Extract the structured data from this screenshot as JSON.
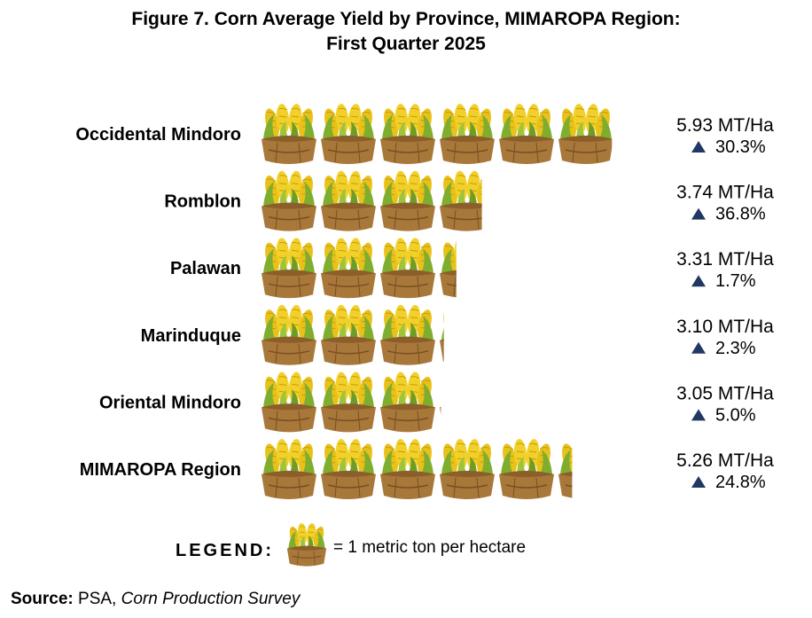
{
  "title_line1": "Figure 7. Corn Average Yield by Province, MIMAROPA Region:",
  "title_line2": "First Quarter 2025",
  "chart_data": {
    "type": "bar",
    "title": "Figure 7. Corn Average Yield by Province, MIMAROPA Region: First Quarter 2025",
    "categories": [
      "Occidental Mindoro",
      "Romblon",
      "Palawan",
      "Marinduque",
      "Oriental Mindoro",
      "MIMAROPA Region"
    ],
    "values": [
      5.93,
      3.74,
      3.31,
      3.1,
      3.05,
      5.26
    ],
    "value_labels": [
      "5.93 MT/Ha",
      "3.74 MT/Ha",
      "3.31 MT/Ha",
      "3.10 MT/Ha",
      "3.05 MT/Ha",
      "5.26 MT/Ha"
    ],
    "change_labels": [
      "30.3%",
      "36.8%",
      "1.7%",
      "2.3%",
      "5.0%",
      "24.8%"
    ],
    "change_direction": [
      "up",
      "up",
      "up",
      "up",
      "up",
      "up"
    ],
    "unit": "MT/Ha",
    "pictogram_unit_value": 1,
    "arrow_color": "#1f3864"
  },
  "legend": {
    "label": "LEGEND:",
    "text": "= 1 metric ton per hectare",
    "icon": "corn-basket-icon"
  },
  "source": {
    "label": "Source:",
    "agency": " PSA, ",
    "survey": "Corn Production Survey"
  }
}
